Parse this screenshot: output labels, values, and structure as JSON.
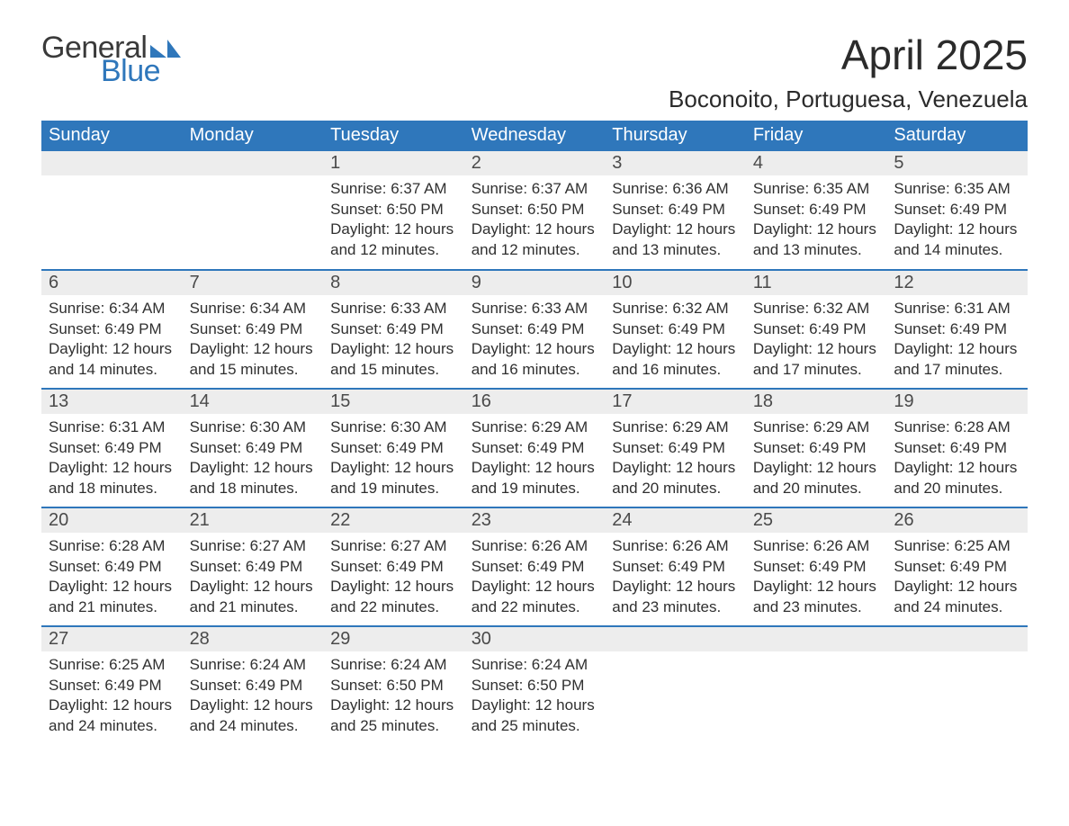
{
  "brand": {
    "word1": "General",
    "word2": "Blue",
    "tri_color": "#2f77bb",
    "word1_color": "#3a3a3a",
    "word2_color": "#2f77bb"
  },
  "header": {
    "month_title": "April 2025",
    "location": "Boconoito, Portuguesa, Venezuela"
  },
  "colors": {
    "header_bg": "#2f77bb",
    "header_text": "#ffffff",
    "daynum_bg": "#ededed",
    "body_text": "#303030",
    "week_border": "#2f77bb",
    "page_bg": "#ffffff"
  },
  "fonts": {
    "month_title_pt": 46,
    "location_pt": 26,
    "weekday_pt": 20,
    "daynum_pt": 20,
    "body_pt": 17
  },
  "weekdays": [
    "Sunday",
    "Monday",
    "Tuesday",
    "Wednesday",
    "Thursday",
    "Friday",
    "Saturday"
  ],
  "weeks": [
    [
      null,
      null,
      {
        "day": "1",
        "sunrise": "Sunrise: 6:37 AM",
        "sunset": "Sunset: 6:50 PM",
        "daylight": "Daylight: 12 hours and 12 minutes."
      },
      {
        "day": "2",
        "sunrise": "Sunrise: 6:37 AM",
        "sunset": "Sunset: 6:50 PM",
        "daylight": "Daylight: 12 hours and 12 minutes."
      },
      {
        "day": "3",
        "sunrise": "Sunrise: 6:36 AM",
        "sunset": "Sunset: 6:49 PM",
        "daylight": "Daylight: 12 hours and 13 minutes."
      },
      {
        "day": "4",
        "sunrise": "Sunrise: 6:35 AM",
        "sunset": "Sunset: 6:49 PM",
        "daylight": "Daylight: 12 hours and 13 minutes."
      },
      {
        "day": "5",
        "sunrise": "Sunrise: 6:35 AM",
        "sunset": "Sunset: 6:49 PM",
        "daylight": "Daylight: 12 hours and 14 minutes."
      }
    ],
    [
      {
        "day": "6",
        "sunrise": "Sunrise: 6:34 AM",
        "sunset": "Sunset: 6:49 PM",
        "daylight": "Daylight: 12 hours and 14 minutes."
      },
      {
        "day": "7",
        "sunrise": "Sunrise: 6:34 AM",
        "sunset": "Sunset: 6:49 PM",
        "daylight": "Daylight: 12 hours and 15 minutes."
      },
      {
        "day": "8",
        "sunrise": "Sunrise: 6:33 AM",
        "sunset": "Sunset: 6:49 PM",
        "daylight": "Daylight: 12 hours and 15 minutes."
      },
      {
        "day": "9",
        "sunrise": "Sunrise: 6:33 AM",
        "sunset": "Sunset: 6:49 PM",
        "daylight": "Daylight: 12 hours and 16 minutes."
      },
      {
        "day": "10",
        "sunrise": "Sunrise: 6:32 AM",
        "sunset": "Sunset: 6:49 PM",
        "daylight": "Daylight: 12 hours and 16 minutes."
      },
      {
        "day": "11",
        "sunrise": "Sunrise: 6:32 AM",
        "sunset": "Sunset: 6:49 PM",
        "daylight": "Daylight: 12 hours and 17 minutes."
      },
      {
        "day": "12",
        "sunrise": "Sunrise: 6:31 AM",
        "sunset": "Sunset: 6:49 PM",
        "daylight": "Daylight: 12 hours and 17 minutes."
      }
    ],
    [
      {
        "day": "13",
        "sunrise": "Sunrise: 6:31 AM",
        "sunset": "Sunset: 6:49 PM",
        "daylight": "Daylight: 12 hours and 18 minutes."
      },
      {
        "day": "14",
        "sunrise": "Sunrise: 6:30 AM",
        "sunset": "Sunset: 6:49 PM",
        "daylight": "Daylight: 12 hours and 18 minutes."
      },
      {
        "day": "15",
        "sunrise": "Sunrise: 6:30 AM",
        "sunset": "Sunset: 6:49 PM",
        "daylight": "Daylight: 12 hours and 19 minutes."
      },
      {
        "day": "16",
        "sunrise": "Sunrise: 6:29 AM",
        "sunset": "Sunset: 6:49 PM",
        "daylight": "Daylight: 12 hours and 19 minutes."
      },
      {
        "day": "17",
        "sunrise": "Sunrise: 6:29 AM",
        "sunset": "Sunset: 6:49 PM",
        "daylight": "Daylight: 12 hours and 20 minutes."
      },
      {
        "day": "18",
        "sunrise": "Sunrise: 6:29 AM",
        "sunset": "Sunset: 6:49 PM",
        "daylight": "Daylight: 12 hours and 20 minutes."
      },
      {
        "day": "19",
        "sunrise": "Sunrise: 6:28 AM",
        "sunset": "Sunset: 6:49 PM",
        "daylight": "Daylight: 12 hours and 20 minutes."
      }
    ],
    [
      {
        "day": "20",
        "sunrise": "Sunrise: 6:28 AM",
        "sunset": "Sunset: 6:49 PM",
        "daylight": "Daylight: 12 hours and 21 minutes."
      },
      {
        "day": "21",
        "sunrise": "Sunrise: 6:27 AM",
        "sunset": "Sunset: 6:49 PM",
        "daylight": "Daylight: 12 hours and 21 minutes."
      },
      {
        "day": "22",
        "sunrise": "Sunrise: 6:27 AM",
        "sunset": "Sunset: 6:49 PM",
        "daylight": "Daylight: 12 hours and 22 minutes."
      },
      {
        "day": "23",
        "sunrise": "Sunrise: 6:26 AM",
        "sunset": "Sunset: 6:49 PM",
        "daylight": "Daylight: 12 hours and 22 minutes."
      },
      {
        "day": "24",
        "sunrise": "Sunrise: 6:26 AM",
        "sunset": "Sunset: 6:49 PM",
        "daylight": "Daylight: 12 hours and 23 minutes."
      },
      {
        "day": "25",
        "sunrise": "Sunrise: 6:26 AM",
        "sunset": "Sunset: 6:49 PM",
        "daylight": "Daylight: 12 hours and 23 minutes."
      },
      {
        "day": "26",
        "sunrise": "Sunrise: 6:25 AM",
        "sunset": "Sunset: 6:49 PM",
        "daylight": "Daylight: 12 hours and 24 minutes."
      }
    ],
    [
      {
        "day": "27",
        "sunrise": "Sunrise: 6:25 AM",
        "sunset": "Sunset: 6:49 PM",
        "daylight": "Daylight: 12 hours and 24 minutes."
      },
      {
        "day": "28",
        "sunrise": "Sunrise: 6:24 AM",
        "sunset": "Sunset: 6:49 PM",
        "daylight": "Daylight: 12 hours and 24 minutes."
      },
      {
        "day": "29",
        "sunrise": "Sunrise: 6:24 AM",
        "sunset": "Sunset: 6:50 PM",
        "daylight": "Daylight: 12 hours and 25 minutes."
      },
      {
        "day": "30",
        "sunrise": "Sunrise: 6:24 AM",
        "sunset": "Sunset: 6:50 PM",
        "daylight": "Daylight: 12 hours and 25 minutes."
      },
      null,
      null,
      null
    ]
  ]
}
